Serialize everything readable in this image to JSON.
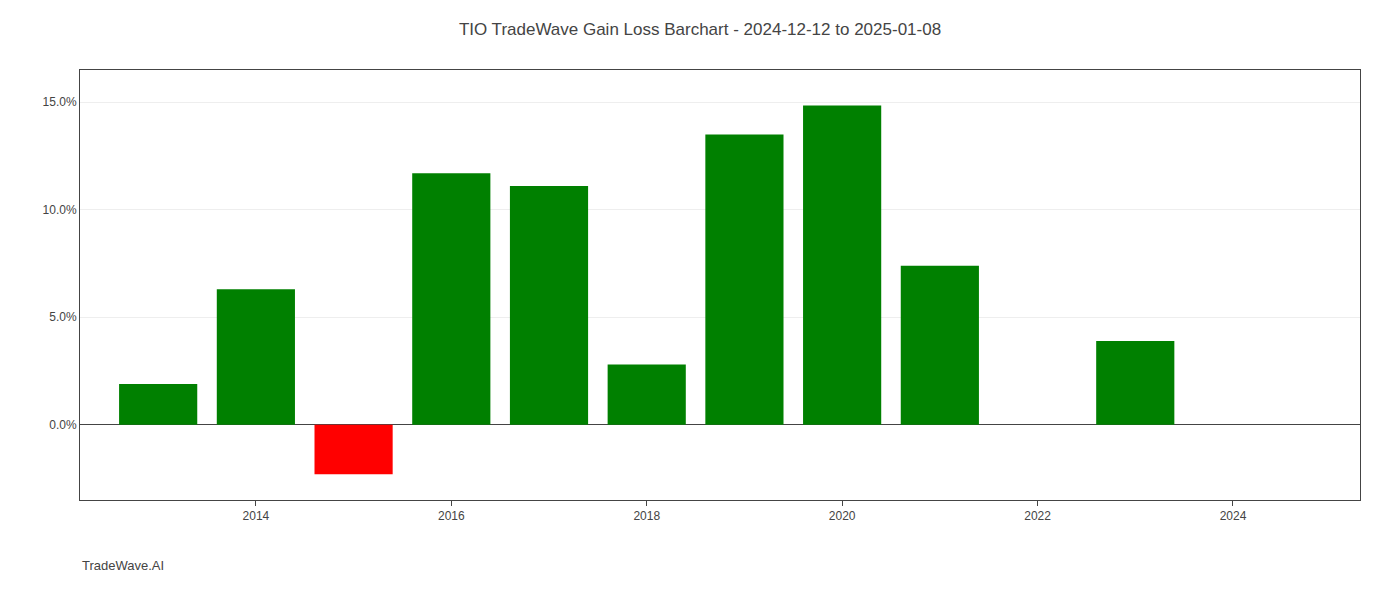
{
  "chart_data": {
    "type": "bar",
    "title": "TIO TradeWave Gain Loss Barchart - 2024-12-12 to 2025-01-08",
    "annotations": [
      "TradeWave.AI"
    ],
    "x": [
      2013,
      2014,
      2015,
      2016,
      2017,
      2018,
      2019,
      2020,
      2021,
      2022,
      2023
    ],
    "values": [
      1.9,
      6.3,
      -2.3,
      11.7,
      11.1,
      2.8,
      13.5,
      14.85,
      7.4,
      0.0,
      3.9
    ],
    "colors": [
      "#008000",
      "#008000",
      "#ff0000",
      "#008000",
      "#008000",
      "#008000",
      "#008000",
      "#008000",
      "#008000",
      "#008000",
      "#008000"
    ],
    "xlim": [
      2012.2,
      2025.3
    ],
    "xticks": [
      2014,
      2016,
      2018,
      2020,
      2022,
      2024
    ],
    "ylim": [
      -3.5,
      16.5
    ],
    "yticks": [
      {
        "value": 0.0,
        "label": "0.0%"
      },
      {
        "value": 5.0,
        "label": "5.0%"
      },
      {
        "value": 10.0,
        "label": "10.0%"
      },
      {
        "value": 15.0,
        "label": "15.0%"
      }
    ],
    "grid": true
  }
}
